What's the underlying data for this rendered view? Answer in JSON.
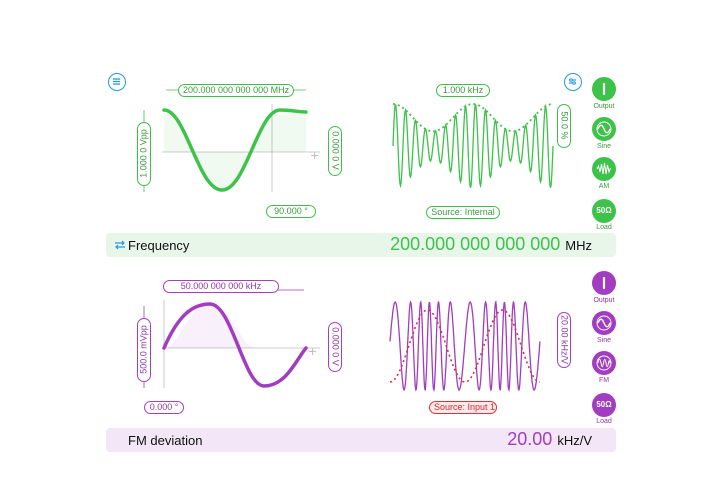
{
  "top": {
    "frequency_pill": "200.000 000 000 000 MHz",
    "amplitude_pill": "1.000 0 Vpp",
    "offset_pill": "0.000 0 V",
    "phase_pill": "90.000 °",
    "mod_freq_pill": "1.000 kHz",
    "mod_depth_pill": "50.0 %",
    "source_pill": "Source: Internal",
    "buttons": [
      {
        "label": "Output",
        "icon": "power-icon"
      },
      {
        "label": "Sine",
        "icon": "sine-icon"
      },
      {
        "label": "AM",
        "icon": "am-wave-icon"
      },
      {
        "label": "Load",
        "icon": "50Ω"
      }
    ],
    "bar": {
      "label": "Frequency",
      "value": "200.000 000 000 000",
      "unit": "MHz"
    }
  },
  "bottom": {
    "frequency_pill": "50.000 000 000 kHz",
    "amplitude_pill": "500.0 mVpp",
    "offset_pill": "0.000 0 V",
    "phase_pill": "0.000 °",
    "deviation_pill": "20.00 kHz/V",
    "source_pill": "Source: Input 1",
    "buttons": [
      {
        "label": "Output",
        "icon": "power-icon"
      },
      {
        "label": "Sine",
        "icon": "sine-icon"
      },
      {
        "label": "FM",
        "icon": "fm-wave-icon"
      },
      {
        "label": "Load",
        "icon": "50Ω"
      }
    ],
    "bar": {
      "label": "FM deviation",
      "value": "20.00",
      "unit": "kHz/V"
    }
  },
  "colors": {
    "green": "#3dc24a",
    "purple": "#a23cc0",
    "blue": "#1e9be8",
    "red": "#e0303a"
  }
}
